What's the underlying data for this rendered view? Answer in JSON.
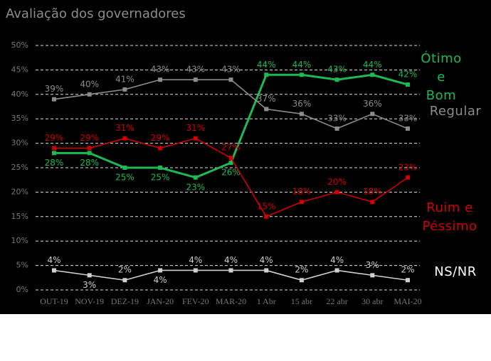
{
  "chart_data": {
    "type": "line",
    "title": "Avaliação dos governadores",
    "categories": [
      "OUT-19",
      "NOV-19",
      "DEZ-19",
      "JAN-20",
      "FEV-20",
      "MAR-20",
      "1 Abr",
      "15 abr",
      "22 abr",
      "30 abr",
      "MAI-20"
    ],
    "series": [
      {
        "name": "Ótimo e Bom",
        "color": "#1db954",
        "values": [
          28,
          28,
          25,
          25,
          23,
          26,
          44,
          44,
          43,
          44,
          42
        ],
        "value_labels": [
          "28%",
          "28%",
          "25%",
          "25%",
          "23%",
          "26%",
          "44%",
          "44%",
          "43%",
          "44%",
          "42%"
        ]
      },
      {
        "name": "Regular",
        "color": "#8c8c8c",
        "values": [
          39,
          40,
          41,
          43,
          43,
          43,
          37,
          36,
          33,
          36,
          33
        ],
        "value_labels": [
          "39%",
          "40%",
          "41%",
          "43%",
          "43%",
          "43%",
          "37%",
          "36%",
          "33%",
          "36%",
          "33%"
        ]
      },
      {
        "name": "Ruim e Péssimo",
        "color": "#d00000",
        "values": [
          29,
          29,
          31,
          29,
          31,
          27,
          15,
          18,
          20,
          18,
          23
        ],
        "value_labels": [
          "29%",
          "29%",
          "31%",
          "29%",
          "31%",
          "27%",
          "15%",
          "18%",
          "20%",
          "18%",
          "23%"
        ]
      },
      {
        "name": "NS/NR",
        "color": "#d0d0d0",
        "values": [
          4,
          3,
          2,
          4,
          4,
          4,
          4,
          2,
          4,
          3,
          2
        ],
        "value_labels": [
          "4%",
          "3%",
          "2%",
          "4%",
          "4%",
          "4%",
          "4%",
          "2%",
          "4%",
          "3%",
          "2%"
        ]
      }
    ],
    "ylim": [
      0,
      50
    ],
    "yticks": [
      {
        "value": 0,
        "label": "0%"
      },
      {
        "value": 5,
        "label": "5%"
      },
      {
        "value": 10,
        "label": "10%"
      },
      {
        "value": 15,
        "label": "15%"
      },
      {
        "value": 20,
        "label": "20%"
      },
      {
        "value": 25,
        "label": "25%"
      },
      {
        "value": 30,
        "label": "30%"
      },
      {
        "value": 35,
        "label": "35%"
      },
      {
        "value": 40,
        "label": "40%"
      },
      {
        "value": 45,
        "label": "45%"
      },
      {
        "value": 50,
        "label": "50%"
      }
    ],
    "grid": true
  }
}
